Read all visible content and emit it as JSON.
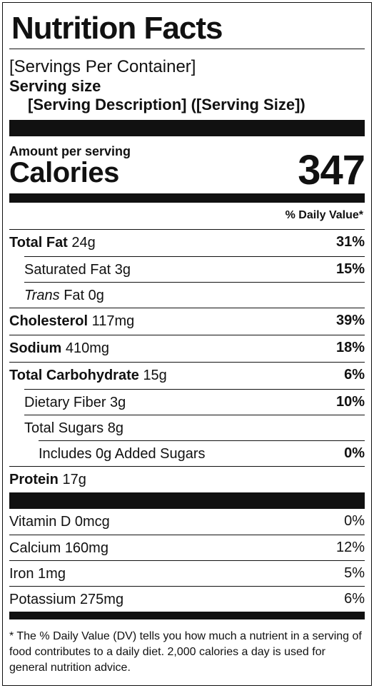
{
  "header": {
    "title": "Nutrition Facts",
    "servings_per_container": "[Servings Per Container]",
    "serving_size_label": "Serving size",
    "serving_size_value": "[Serving Description] ([Serving Size])"
  },
  "calories": {
    "amount_label": "Amount per serving",
    "label": "Calories",
    "value": "347"
  },
  "dv_header": "% Daily Value*",
  "nutrients": [
    {
      "name": "Total Fat",
      "amount": "24g",
      "pct": "31%"
    },
    {
      "name": "Saturated Fat",
      "amount": "3g",
      "pct": "15%"
    },
    {
      "name": "Trans",
      "name_rest": "Fat",
      "amount": "0g",
      "pct": ""
    },
    {
      "name": "Cholesterol",
      "amount": "117mg",
      "pct": "39%"
    },
    {
      "name": "Sodium",
      "amount": "410mg",
      "pct": "18%"
    },
    {
      "name": "Total Carbohydrate",
      "amount": "15g",
      "pct": "6%"
    },
    {
      "name": "Dietary Fiber",
      "amount": "3g",
      "pct": "10%"
    },
    {
      "name": "Total Sugars",
      "amount": "8g",
      "pct": ""
    },
    {
      "name": "Includes 0g Added Sugars",
      "amount": "",
      "pct": "0%"
    },
    {
      "name": "Protein",
      "amount": "17g",
      "pct": ""
    }
  ],
  "vitamins": [
    {
      "name": "Vitamin D",
      "amount": "0mcg",
      "pct": "0%"
    },
    {
      "name": "Calcium",
      "amount": "160mg",
      "pct": "12%"
    },
    {
      "name": "Iron",
      "amount": "1mg",
      "pct": "5%"
    },
    {
      "name": "Potassium",
      "amount": "275mg",
      "pct": "6%"
    }
  ],
  "footnote": "* The % Daily Value (DV) tells you how much a nutrient in a serving of food contributes to a daily diet. 2,000 calories a day is used for general nutrition advice."
}
